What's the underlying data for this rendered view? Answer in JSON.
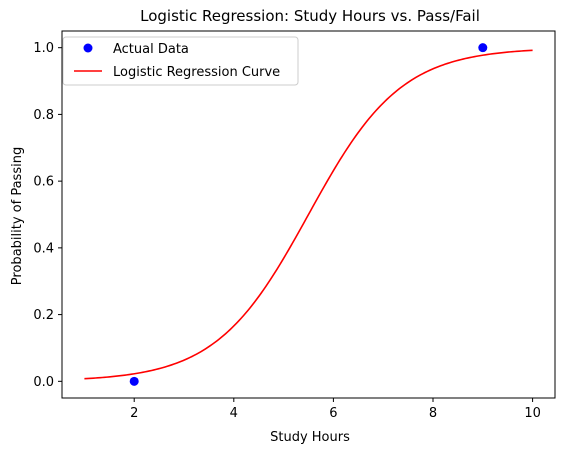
{
  "chart_data": {
    "type": "scatter+line",
    "title": "Logistic Regression: Study Hours vs. Pass/Fail",
    "xlabel": "Study Hours",
    "ylabel": "Probability of Passing",
    "xlim": [
      0.55,
      10.45
    ],
    "ylim": [
      -0.05,
      1.05
    ],
    "xticks": [
      2,
      4,
      6,
      8,
      10
    ],
    "yticks": [
      0.0,
      0.2,
      0.4,
      0.6,
      0.8,
      1.0
    ],
    "xtick_labels": [
      "2",
      "4",
      "6",
      "8",
      "10"
    ],
    "ytick_labels": [
      "0.0",
      "0.2",
      "0.4",
      "0.6",
      "0.8",
      "1.0"
    ],
    "grid": false,
    "legend_position": "upper-left",
    "series": [
      {
        "name": "Actual Data",
        "kind": "scatter",
        "color": "#0000ff",
        "points": [
          {
            "x": 2,
            "y": 0
          },
          {
            "x": 9,
            "y": 1
          }
        ]
      },
      {
        "name": "Logistic Regression Curve",
        "kind": "line",
        "color": "#ff0000",
        "model": {
          "type": "logistic",
          "slope": 1.077,
          "midpoint": 5.5
        },
        "x_range": [
          1,
          10
        ],
        "samples": 200
      }
    ]
  }
}
